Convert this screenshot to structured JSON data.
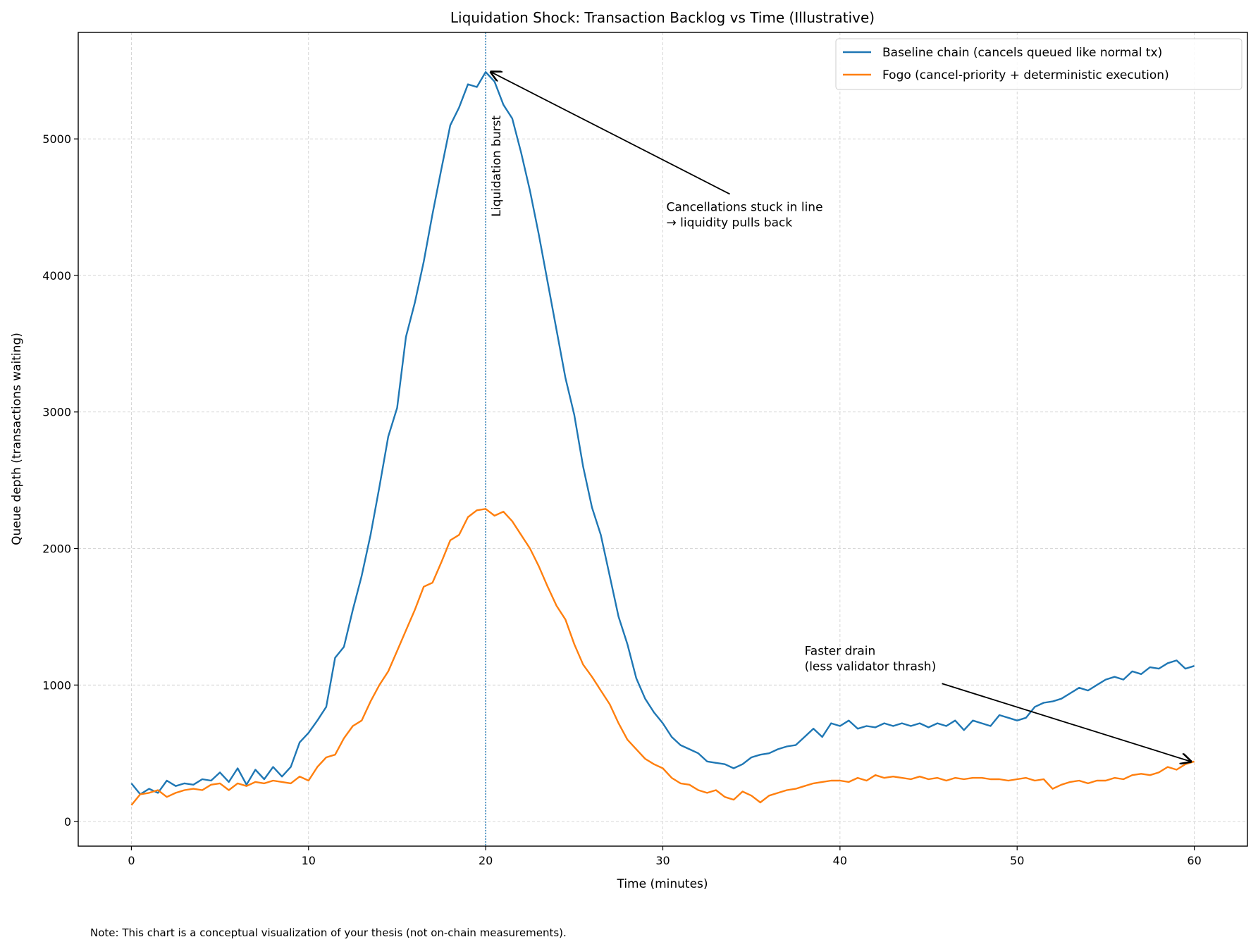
{
  "chart_data": {
    "type": "line",
    "title": "Liquidation Shock: Transaction Backlog vs Time (Illustrative)",
    "xlabel": "Time (minutes)",
    "ylabel": "Queue depth (transactions waiting)",
    "xlim": [
      -3,
      63
    ],
    "ylim": [
      -180,
      5780
    ],
    "xticks": [
      0,
      10,
      20,
      30,
      40,
      50,
      60
    ],
    "yticks": [
      0,
      1000,
      2000,
      3000,
      4000,
      5000
    ],
    "grid": true,
    "legend_position": "top-right",
    "x": [
      0,
      0.5,
      1,
      1.5,
      2,
      2.5,
      3,
      3.5,
      4,
      4.5,
      5,
      5.5,
      6,
      6.5,
      7,
      7.5,
      8,
      8.5,
      9,
      9.5,
      10,
      10.5,
      11,
      11.5,
      12,
      12.5,
      13,
      13.5,
      14,
      14.5,
      15,
      15.5,
      16,
      16.5,
      17,
      17.5,
      18,
      18.5,
      19,
      19.5,
      20,
      20.5,
      21,
      21.5,
      22,
      22.5,
      23,
      23.5,
      24,
      24.5,
      25,
      25.5,
      26,
      26.5,
      27,
      27.5,
      28,
      28.5,
      29,
      29.5,
      30,
      30.5,
      31,
      31.5,
      32,
      32.5,
      33,
      33.5,
      34,
      34.5,
      35,
      35.5,
      36,
      36.5,
      37,
      37.5,
      38,
      38.5,
      39,
      39.5,
      40,
      40.5,
      41,
      41.5,
      42,
      42.5,
      43,
      43.5,
      44,
      44.5,
      45,
      45.5,
      46,
      46.5,
      47,
      47.5,
      48,
      48.5,
      49,
      49.5,
      50,
      50.5,
      51,
      51.5,
      52,
      52.5,
      53,
      53.5,
      54,
      54.5,
      55,
      55.5,
      56,
      56.5,
      57,
      57.5,
      58,
      58.5,
      59,
      59.5,
      60
    ],
    "series": [
      {
        "name": "Baseline chain (cancels queued like normal tx)",
        "color": "#1f77b4",
        "values": [
          280,
          200,
          240,
          210,
          300,
          260,
          280,
          270,
          310,
          300,
          360,
          290,
          390,
          270,
          380,
          310,
          400,
          330,
          400,
          580,
          650,
          740,
          840,
          1200,
          1280,
          1550,
          1800,
          2100,
          2450,
          2820,
          3030,
          3550,
          3800,
          4100,
          4450,
          4780,
          5100,
          5230,
          5400,
          5380,
          5490,
          5420,
          5250,
          5150,
          4900,
          4620,
          4300,
          3950,
          3600,
          3250,
          2980,
          2600,
          2300,
          2100,
          1800,
          1500,
          1300,
          1050,
          900,
          800,
          720,
          620,
          560,
          530,
          500,
          440,
          430,
          420,
          390,
          420,
          470,
          490,
          500,
          530,
          550,
          560,
          620,
          680,
          620,
          720,
          700,
          740,
          680,
          700,
          690,
          720,
          700,
          720,
          700,
          720,
          690,
          720,
          700,
          740,
          670,
          740,
          720,
          700,
          780,
          760,
          740,
          760,
          840,
          870,
          880,
          900,
          940,
          980,
          960,
          1000,
          1040,
          1060,
          1040,
          1100,
          1080,
          1130,
          1120,
          1160,
          1180,
          1120,
          1140
        ]
      },
      {
        "name": "Fogo (cancel-priority + deterministic execution)",
        "color": "#ff7f0e",
        "values": [
          120,
          200,
          210,
          230,
          180,
          210,
          230,
          240,
          230,
          270,
          280,
          230,
          280,
          260,
          290,
          280,
          300,
          290,
          280,
          330,
          300,
          400,
          470,
          490,
          610,
          700,
          740,
          880,
          1000,
          1100,
          1250,
          1400,
          1550,
          1720,
          1750,
          1900,
          2060,
          2100,
          2230,
          2280,
          2290,
          2240,
          2270,
          2200,
          2100,
          2000,
          1870,
          1720,
          1580,
          1480,
          1300,
          1150,
          1060,
          960,
          860,
          720,
          600,
          530,
          460,
          420,
          390,
          320,
          280,
          270,
          230,
          210,
          230,
          180,
          160,
          220,
          190,
          140,
          190,
          210,
          230,
          240,
          260,
          280,
          290,
          300,
          300,
          290,
          320,
          300,
          340,
          320,
          330,
          320,
          310,
          330,
          310,
          320,
          300,
          320,
          310,
          320,
          320,
          310,
          310,
          300,
          310,
          320,
          300,
          310,
          240,
          270,
          290,
          300,
          280,
          300,
          300,
          320,
          310,
          340,
          350,
          340,
          360,
          400,
          380,
          420,
          440
        ]
      }
    ],
    "vline": {
      "x": 20,
      "label": "Liquidation burst",
      "color": "#1f77b4"
    },
    "annotations": [
      {
        "lines": [
          "Cancellations stuck in line",
          "→ liquidity pulls back"
        ],
        "text_xy": [
          30.2,
          4400
        ],
        "arrow_to": [
          20.3,
          5490
        ]
      },
      {
        "lines": [
          "Faster drain",
          "(less validator thrash)"
        ],
        "text_xy": [
          38,
          1150
        ],
        "arrow_to": [
          59.8,
          440
        ]
      }
    ]
  },
  "footnote": "Note: This chart is a conceptual visualization of your thesis (not on-chain measurements)."
}
